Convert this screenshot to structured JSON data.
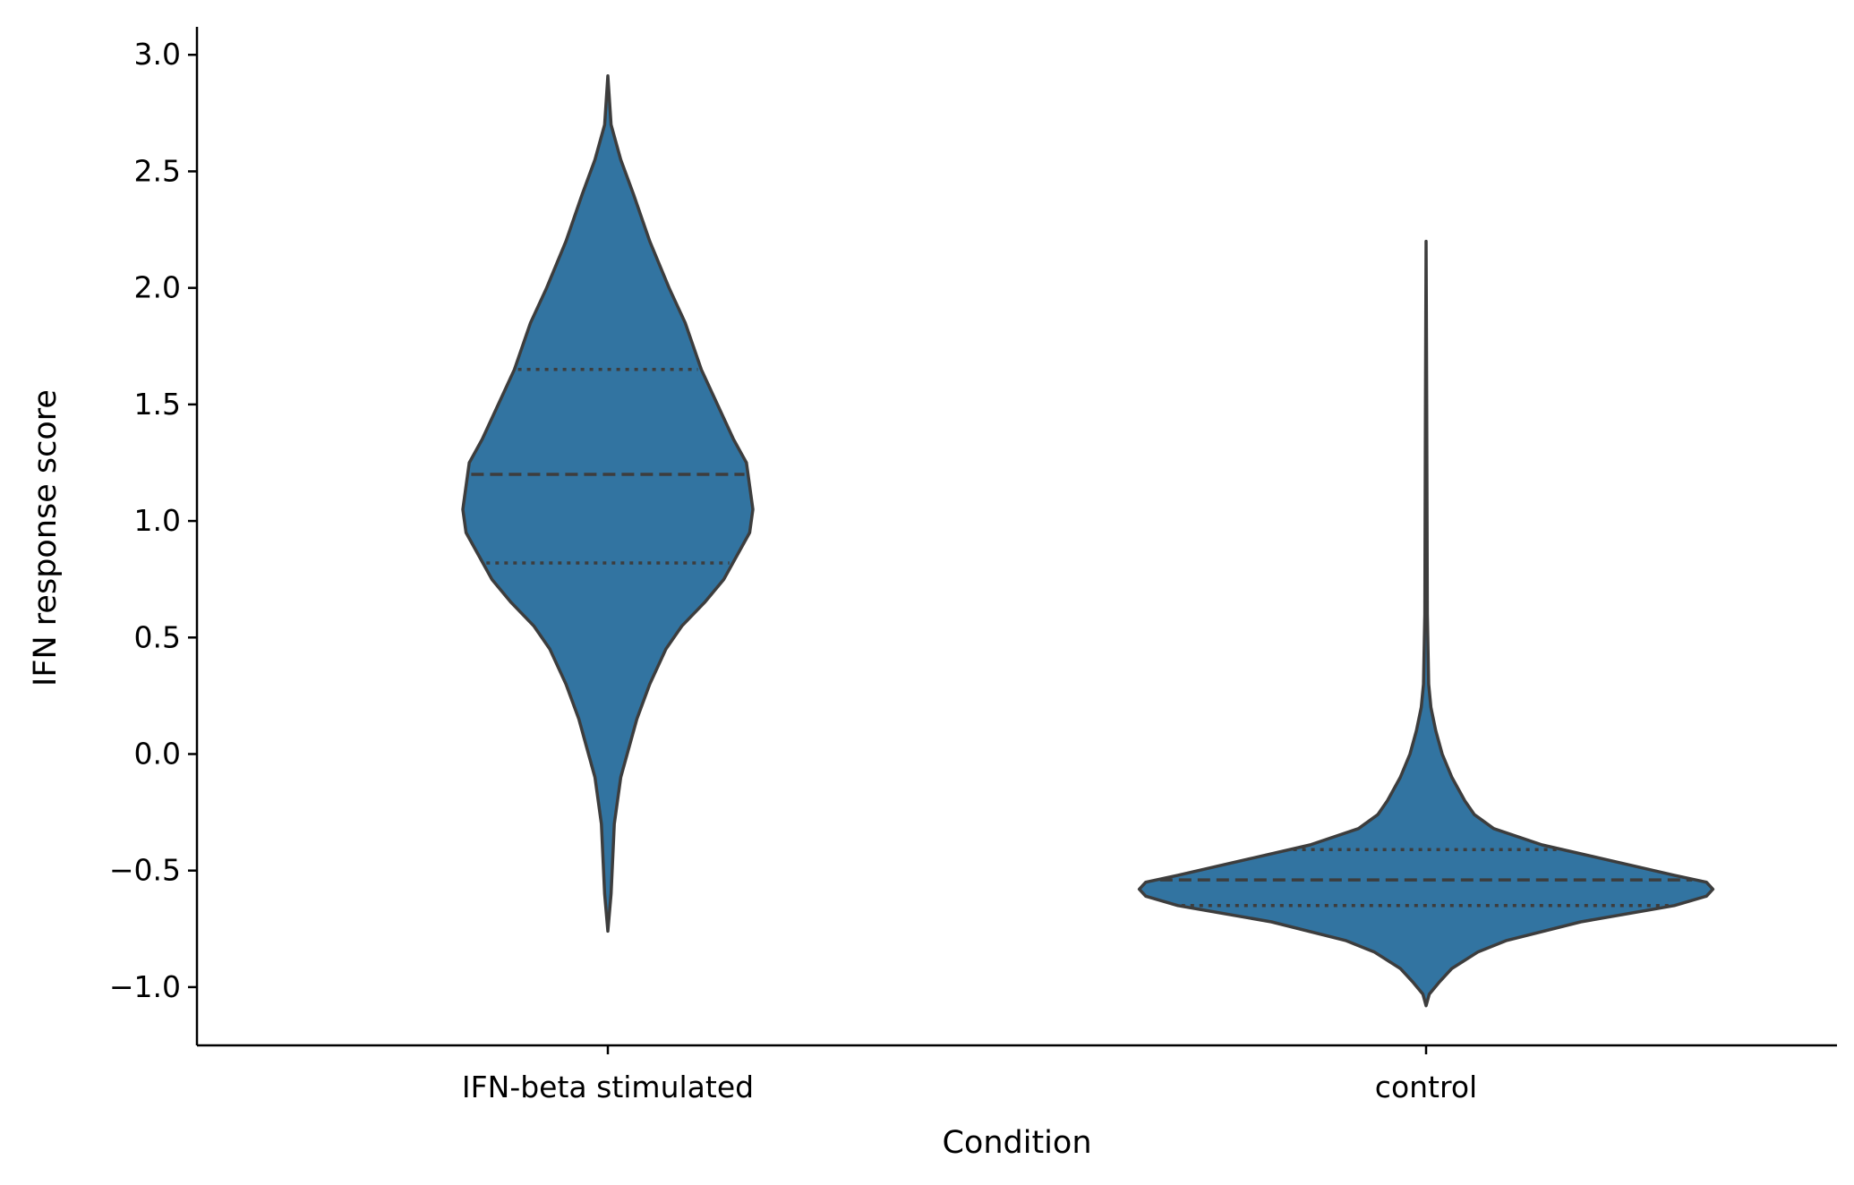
{
  "chart_data": {
    "type": "violin",
    "xlabel": "Condition",
    "ylabel": "IFN response score",
    "ylim": [
      -1.25,
      3.12
    ],
    "yticks": [
      {
        "value": -1.0,
        "label": "−1.0"
      },
      {
        "value": -0.5,
        "label": "−0.5"
      },
      {
        "value": 0.0,
        "label": "0.0"
      },
      {
        "value": 0.5,
        "label": "0.5"
      },
      {
        "value": 1.0,
        "label": "1.0"
      },
      {
        "value": 1.5,
        "label": "1.5"
      },
      {
        "value": 2.0,
        "label": "2.0"
      },
      {
        "value": 2.5,
        "label": "2.5"
      },
      {
        "value": 3.0,
        "label": "3.0"
      }
    ],
    "grid": false,
    "colors": {
      "fill": "#3274a1",
      "edge": "#3d3d3d"
    },
    "categories": [
      "IFN-beta stimulated",
      "control"
    ],
    "violins": [
      {
        "category": "IFN-beta stimulated",
        "min": -0.76,
        "max": 2.91,
        "q1": 0.82,
        "median": 1.2,
        "q3": 1.65,
        "profile": [
          [
            -0.76,
            0.0
          ],
          [
            -0.6,
            0.01
          ],
          [
            -0.3,
            0.02
          ],
          [
            -0.1,
            0.04
          ],
          [
            0.0,
            0.06
          ],
          [
            0.15,
            0.09
          ],
          [
            0.3,
            0.13
          ],
          [
            0.45,
            0.18
          ],
          [
            0.55,
            0.23
          ],
          [
            0.65,
            0.3
          ],
          [
            0.75,
            0.36
          ],
          [
            0.85,
            0.4
          ],
          [
            0.95,
            0.44
          ],
          [
            1.05,
            0.45
          ],
          [
            1.15,
            0.44
          ],
          [
            1.25,
            0.43
          ],
          [
            1.35,
            0.39
          ],
          [
            1.5,
            0.34
          ],
          [
            1.65,
            0.29
          ],
          [
            1.85,
            0.24
          ],
          [
            2.0,
            0.19
          ],
          [
            2.2,
            0.13
          ],
          [
            2.4,
            0.08
          ],
          [
            2.55,
            0.04
          ],
          [
            2.7,
            0.01
          ],
          [
            2.91,
            0.0
          ]
        ]
      },
      {
        "category": "control",
        "min": -1.08,
        "max": 2.2,
        "q1": -0.65,
        "median": -0.54,
        "q3": -0.41,
        "profile": [
          [
            -1.08,
            0.0
          ],
          [
            -1.03,
            0.01
          ],
          [
            -0.98,
            0.04
          ],
          [
            -0.92,
            0.08
          ],
          [
            -0.85,
            0.16
          ],
          [
            -0.8,
            0.25
          ],
          [
            -0.72,
            0.48
          ],
          [
            -0.65,
            0.77
          ],
          [
            -0.61,
            0.87
          ],
          [
            -0.58,
            0.89
          ],
          [
            -0.55,
            0.87
          ],
          [
            -0.52,
            0.77
          ],
          [
            -0.45,
            0.55
          ],
          [
            -0.39,
            0.36
          ],
          [
            -0.32,
            0.21
          ],
          [
            -0.26,
            0.15
          ],
          [
            -0.2,
            0.12
          ],
          [
            -0.1,
            0.08
          ],
          [
            0.0,
            0.05
          ],
          [
            0.1,
            0.03
          ],
          [
            0.2,
            0.015
          ],
          [
            0.3,
            0.008
          ],
          [
            0.6,
            0.004
          ],
          [
            1.0,
            0.003
          ],
          [
            1.5,
            0.002
          ],
          [
            2.2,
            0.0
          ]
        ]
      }
    ]
  }
}
